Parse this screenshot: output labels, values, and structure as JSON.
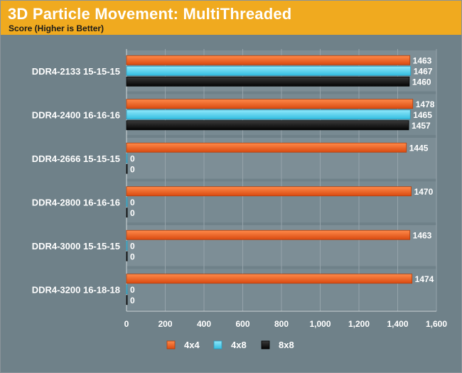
{
  "chart_data": {
    "type": "bar",
    "orientation": "horizontal",
    "title": "3D Particle Movement: MultiThreaded",
    "subtitle": "Score (Higher is Better)",
    "categories": [
      "DDR4-2133 15-15-15",
      "DDR4-2400 16-16-16",
      "DDR4-2666 15-15-15",
      "DDR4-2800 16-16-16",
      "DDR4-3000 15-15-15",
      "DDR4-3200 16-18-18"
    ],
    "series": [
      {
        "name": "4x4",
        "color": "#f05a1e",
        "values": [
          1463,
          1478,
          1445,
          1470,
          1463,
          1474
        ]
      },
      {
        "name": "4x8",
        "color": "#4fd3f0",
        "values": [
          1467,
          1465,
          0,
          0,
          0,
          0
        ]
      },
      {
        "name": "8x8",
        "color": "#1a1a1a",
        "values": [
          1460,
          1457,
          0,
          0,
          0,
          0
        ]
      }
    ],
    "xlim": [
      0,
      1600
    ],
    "xticks": [
      "0",
      "200",
      "400",
      "600",
      "800",
      "1,000",
      "1,200",
      "1,400",
      "1,600"
    ],
    "xlabel": "",
    "ylabel": "",
    "legend_position": "bottom",
    "grid": true
  }
}
